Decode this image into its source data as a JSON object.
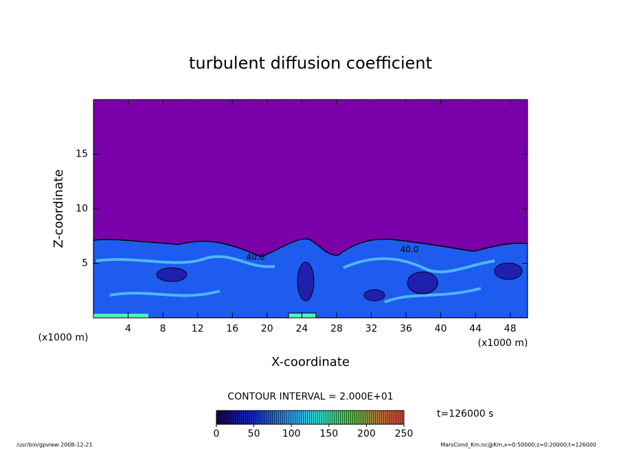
{
  "chart_data": {
    "type": "contour",
    "title": "turbulent diffusion coefficient",
    "x_label": "X-coordinate",
    "y_label": "Z-coordinate",
    "x_unit": "(x1000 m)",
    "y_unit": "(x1000 m)",
    "xlim": [
      0,
      50
    ],
    "xticks": [
      4,
      8,
      12,
      16,
      20,
      24,
      28,
      32,
      36,
      40,
      44,
      48
    ],
    "ylim": [
      0,
      20
    ],
    "yticks": [
      5,
      10,
      15
    ],
    "contour_interval": "CONTOUR INTERVAL = 2.000E+01",
    "contour_labels": [
      "40.0",
      "40.0"
    ],
    "colorbar_lim": [
      0,
      250
    ],
    "colorbar_ticks": [
      0,
      50,
      100,
      150,
      200,
      250
    ],
    "time_label": "t=126000 s",
    "footer_left": "/usr/bin/gpview   2008-12-21",
    "footer_right": "MarsCond_Km.nc@Km,x=0:50000,z=0:20000,t=126000"
  }
}
